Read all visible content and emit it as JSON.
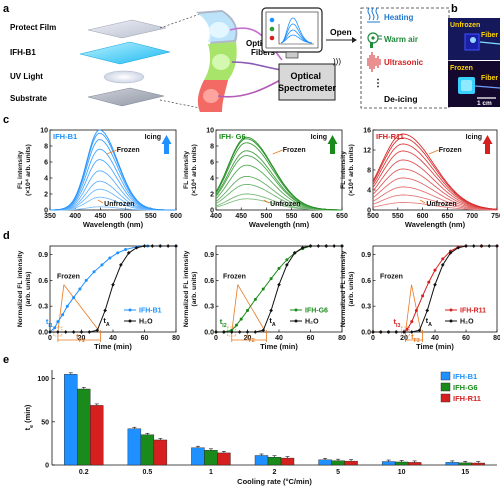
{
  "panels": {
    "a": "a",
    "b": "b",
    "c": "c",
    "d": "d",
    "e": "e"
  },
  "schematic": {
    "layers": [
      "Protect Film",
      "IFH-B1",
      "UV Light",
      "Substrate"
    ],
    "fibers_label": "Optical\nFibers",
    "spectrometer_label": "Optical\nSpectrometer",
    "open_label": "Open",
    "methods": [
      "Heating",
      "Warm air",
      "Ultrasonic"
    ],
    "ellipsis": "⋮",
    "deicing_label": "De-icing"
  },
  "photos": {
    "unfrozen": "Unfrozen",
    "frozen": "Frozen",
    "fiber": "Fiber",
    "scale": "1 cm"
  },
  "colors": {
    "blue": "#1e90ff",
    "green": "#1a8a1a",
    "red": "#d62020",
    "orange": "#e87a20",
    "black": "#111111"
  },
  "chart_data": [
    {
      "id": "c1",
      "type": "line",
      "title": "IFH-B1",
      "xlabel": "Wavelength (nm)",
      "ylabel": "FL intensity\n(×10⁴ arb. units)",
      "xlim": [
        350,
        600
      ],
      "ylim": [
        0,
        10
      ],
      "xticks": [
        350,
        400,
        450,
        500,
        550,
        600
      ],
      "yticks": [
        0,
        2,
        4,
        6,
        8,
        10
      ],
      "annotations": [
        "Icing",
        "Frozen",
        "Unfrozen"
      ],
      "peak": 448,
      "amplitudes": [
        0.4,
        1.6,
        2.6,
        3.6,
        4.9,
        6.3,
        7.6,
        8.8,
        9.6,
        10.0
      ]
    },
    {
      "id": "c2",
      "type": "line",
      "title": "IFH- G6",
      "xlabel": "Wavelength (nm)",
      "ylabel": "FL intensity\n(×10⁴ arb. units)",
      "xlim": [
        400,
        650
      ],
      "ylim": [
        0,
        10
      ],
      "xticks": [
        400,
        450,
        500,
        550,
        600,
        650
      ],
      "yticks": [
        0,
        2,
        4,
        6,
        8,
        10
      ],
      "annotations": [
        "Icing",
        "Frozen",
        "Unfrozen"
      ],
      "peak": 460,
      "amplitudes": [
        1.4,
        2.0,
        3.2,
        4.2,
        5.6,
        6.8,
        7.4,
        8.4,
        8.9,
        9.1
      ]
    },
    {
      "id": "c3",
      "type": "line",
      "title": "IFH-R11",
      "xlabel": "Wavelength (nm)",
      "ylabel": "FL intensity\n(×10⁴ arb. units)",
      "xlim": [
        500,
        750
      ],
      "ylim": [
        0,
        16
      ],
      "xticks": [
        500,
        550,
        600,
        650,
        700,
        750
      ],
      "yticks": [
        0,
        4,
        8,
        12,
        16
      ],
      "annotations": [
        "Icing",
        "Frozen",
        "Unfrozen"
      ],
      "peak": 560,
      "amplitudes": [
        1.5,
        3.0,
        4.6,
        6.4,
        8.2,
        10.0,
        11.8,
        13.2,
        14.4,
        15.2
      ]
    },
    {
      "id": "d1",
      "type": "line",
      "xlabel": "Time (min)",
      "ylabel": "Normalized FL intensity\n(arb. units)",
      "xlim": [
        0,
        80
      ],
      "ylim": [
        0,
        1.0
      ],
      "xticks": [
        0,
        20,
        40,
        60,
        80
      ],
      "yticks": [
        0.0,
        0.3,
        0.6,
        0.9
      ],
      "series": [
        {
          "name": "IFH-B1",
          "x": [
            0,
            3,
            5,
            8,
            11,
            15,
            19,
            23,
            28,
            33,
            38,
            43,
            48,
            55,
            62,
            70,
            80
          ],
          "y": [
            0.0,
            0.05,
            0.12,
            0.2,
            0.3,
            0.4,
            0.5,
            0.6,
            0.7,
            0.78,
            0.86,
            0.92,
            0.96,
            0.99,
            1.0,
            1.0,
            1.0
          ]
        },
        {
          "name": "H₂O",
          "x": [
            0,
            5,
            10,
            15,
            20,
            25,
            30,
            35,
            40,
            45,
            50,
            55,
            60,
            65,
            70,
            75,
            80
          ],
          "y": [
            0,
            0,
            0,
            0,
            0,
            0,
            0.02,
            0.25,
            0.55,
            0.78,
            0.92,
            0.98,
            1.0,
            1.0,
            1.0,
            1.0,
            1.0
          ]
        }
      ],
      "labels": {
        "frozen": "Frozen",
        "tI": "t",
        "tI_sub": "I1",
        "tF": "t",
        "tF_sub": "F1",
        "tA": "t",
        "tA_sub": "A"
      }
    },
    {
      "id": "d2",
      "type": "line",
      "xlabel": "Time (min)",
      "ylabel": "Normalized FL intensity\n(arb. units)",
      "xlim": [
        0,
        80
      ],
      "ylim": [
        0,
        1.0
      ],
      "xticks": [
        0,
        20,
        40,
        60,
        80
      ],
      "yticks": [
        0.0,
        0.3,
        0.6,
        0.9
      ],
      "series": [
        {
          "name": "IFH-G6",
          "x": [
            0,
            5,
            10,
            13,
            16,
            20,
            25,
            30,
            35,
            40,
            45,
            50,
            55,
            60,
            70,
            80
          ],
          "y": [
            0,
            0,
            0.02,
            0.08,
            0.15,
            0.25,
            0.38,
            0.5,
            0.62,
            0.74,
            0.84,
            0.92,
            0.97,
            1.0,
            1.0,
            1.0
          ]
        },
        {
          "name": "H₂O",
          "x": [
            0,
            5,
            10,
            15,
            20,
            25,
            30,
            35,
            40,
            45,
            50,
            55,
            60,
            65,
            70,
            75,
            80
          ],
          "y": [
            0,
            0,
            0,
            0,
            0,
            0,
            0.02,
            0.25,
            0.55,
            0.78,
            0.92,
            0.98,
            1.0,
            1.0,
            1.0,
            1.0,
            1.0
          ]
        }
      ],
      "labels": {
        "frozen": "Frozen",
        "tI": "t",
        "tI_sub": "I2",
        "tF": "t",
        "tF_sub": "F2",
        "tA": "t",
        "tA_sub": "A"
      }
    },
    {
      "id": "d3",
      "type": "line",
      "xlabel": "Time (min)",
      "ylabel": "Normalized FL intensity\n(arb. units)",
      "xlim": [
        0,
        80
      ],
      "ylim": [
        0,
        1.0
      ],
      "xticks": [
        0,
        20,
        40,
        60,
        80
      ],
      "yticks": [
        0.0,
        0.3,
        0.6,
        0.9
      ],
      "series": [
        {
          "name": "IFH-R11",
          "x": [
            0,
            5,
            10,
            15,
            20,
            22,
            25,
            28,
            32,
            36,
            40,
            45,
            50,
            55,
            60,
            70,
            80
          ],
          "y": [
            0,
            0,
            0,
            0,
            0,
            0.03,
            0.12,
            0.25,
            0.42,
            0.58,
            0.72,
            0.85,
            0.94,
            0.99,
            1.0,
            1.0,
            1.0
          ]
        },
        {
          "name": "H₂O",
          "x": [
            0,
            5,
            10,
            15,
            20,
            25,
            30,
            35,
            40,
            45,
            50,
            55,
            60,
            65,
            70,
            75,
            80
          ],
          "y": [
            0,
            0,
            0,
            0,
            0,
            0,
            0.02,
            0.25,
            0.55,
            0.78,
            0.92,
            0.98,
            1.0,
            1.0,
            1.0,
            1.0,
            1.0
          ]
        }
      ],
      "labels": {
        "frozen": "Frozen",
        "tI": "t",
        "tI_sub": "I3",
        "tF": "t",
        "tF_sub": "F3",
        "tA": "t",
        "tA_sub": "A"
      }
    },
    {
      "id": "e",
      "type": "bar",
      "xlabel": "Cooling rate (°C/min)",
      "ylabel": "t",
      "ylabel_sub": "e",
      "ylabel_unit": " (min)",
      "categories": [
        "0.2",
        "0.5",
        "1",
        "2",
        "5",
        "10",
        "15"
      ],
      "ylim": [
        0,
        110
      ],
      "yticks": [
        0,
        50,
        100
      ],
      "legend_position": "top-right",
      "series": [
        {
          "name": "IFH-B1",
          "values": [
            105,
            42,
            20,
            11,
            6,
            4,
            3
          ]
        },
        {
          "name": "IFH-G6",
          "values": [
            88,
            35,
            17,
            9,
            5,
            3.5,
            2.5
          ]
        },
        {
          "name": "IFH-R11",
          "values": [
            69,
            29,
            14,
            8,
            4.5,
            3,
            2.3
          ]
        }
      ]
    }
  ]
}
